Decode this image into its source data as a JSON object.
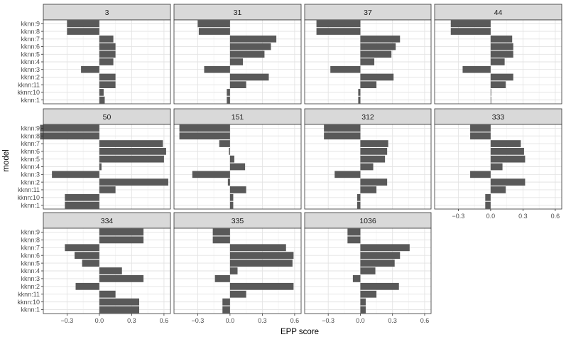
{
  "chart_data": {
    "type": "bar",
    "orientation": "horizontal",
    "facet_layout": "wrap",
    "xlabel": "EPP score",
    "ylabel": "model",
    "xlim": [
      -0.52,
      0.66
    ],
    "x_ticks": [
      -0.3,
      0.0,
      0.3,
      0.6
    ],
    "x_tick_labels": [
      "−0.3",
      "0.0",
      "0.3",
      "0.6"
    ],
    "grid": true,
    "categories": [
      "kknn:9",
      "kknn:8",
      "kknn:7",
      "kknn:6",
      "kknn:5",
      "kknn:4",
      "kknn:3",
      "kknn:2",
      "kknn:11",
      "kknn:10",
      "kknn:1"
    ],
    "panels": [
      {
        "label": "3",
        "values": [
          -0.3,
          -0.3,
          0.13,
          0.15,
          0.15,
          0.13,
          -0.17,
          0.15,
          0.15,
          0.04,
          0.05
        ]
      },
      {
        "label": "31",
        "values": [
          -0.3,
          -0.29,
          0.43,
          0.38,
          0.32,
          0.12,
          -0.24,
          0.36,
          0.15,
          -0.03,
          -0.03
        ]
      },
      {
        "label": "37",
        "values": [
          -0.41,
          -0.41,
          0.37,
          0.33,
          0.29,
          0.13,
          -0.28,
          0.31,
          0.15,
          -0.02,
          -0.02
        ]
      },
      {
        "label": "44",
        "values": [
          -0.37,
          -0.37,
          0.2,
          0.21,
          0.21,
          0.13,
          -0.26,
          0.21,
          0.14,
          0.0,
          0.0
        ]
      },
      {
        "label": "50",
        "values": [
          -0.55,
          -0.55,
          0.59,
          0.62,
          0.6,
          0.02,
          -0.44,
          0.64,
          0.15,
          -0.32,
          -0.32
        ]
      },
      {
        "label": "151",
        "values": [
          -0.47,
          -0.47,
          -0.1,
          -0.01,
          0.04,
          0.14,
          -0.35,
          -0.02,
          0.15,
          0.03,
          0.03
        ]
      },
      {
        "label": "312",
        "values": [
          -0.34,
          -0.34,
          0.26,
          0.25,
          0.23,
          0.12,
          -0.24,
          0.25,
          0.15,
          -0.03,
          -0.03
        ]
      },
      {
        "label": "333",
        "values": [
          -0.19,
          -0.19,
          0.28,
          0.31,
          0.32,
          0.11,
          -0.19,
          0.32,
          0.14,
          -0.05,
          -0.05
        ]
      },
      {
        "label": "334",
        "values": [
          0.41,
          0.41,
          -0.32,
          -0.23,
          -0.16,
          0.21,
          0.41,
          -0.22,
          0.15,
          0.37,
          0.37
        ]
      },
      {
        "label": "335",
        "values": [
          -0.16,
          -0.16,
          0.52,
          0.59,
          0.58,
          0.07,
          -0.14,
          0.59,
          0.15,
          -0.07,
          -0.07
        ]
      },
      {
        "label": "1036",
        "values": [
          -0.12,
          -0.12,
          0.46,
          0.37,
          0.32,
          0.14,
          -0.07,
          0.36,
          0.15,
          0.05,
          0.05
        ]
      }
    ]
  }
}
